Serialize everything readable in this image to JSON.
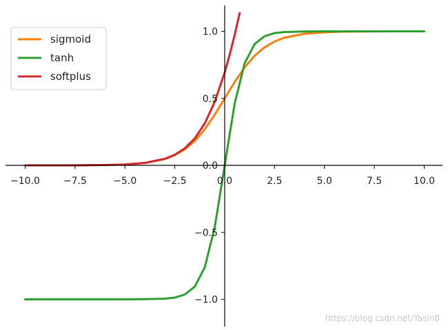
{
  "chart_data": {
    "type": "line",
    "title": "",
    "xlabel": "",
    "ylabel": "",
    "xlim": [
      -10.5,
      10.5
    ],
    "ylim": [
      -1.2,
      1.2
    ],
    "grid": false,
    "spines": "centered",
    "legend_position": "top-left",
    "xticks": [
      "−10.0",
      "−7.5",
      "−5.0",
      "−2.5",
      "0.0",
      "2.5",
      "5.0",
      "7.5",
      "10.0"
    ],
    "xtick_values": [
      -10,
      -7.5,
      -5,
      -2.5,
      0,
      2.5,
      5,
      7.5,
      10
    ],
    "yticks": [
      "−1.0",
      "−0.5",
      "0.0",
      "0.5",
      "1.0"
    ],
    "ytick_values": [
      -1,
      -0.5,
      0,
      0.5,
      1
    ],
    "series": [
      {
        "name": "sigmoid",
        "color": "#ff7f0e",
        "x": [
          -10,
          -9,
          -8,
          -7,
          -6,
          -5,
          -4,
          -3,
          -2.5,
          -2,
          -1.5,
          -1,
          -0.5,
          0,
          0.5,
          1,
          1.5,
          2,
          2.5,
          3,
          4,
          5,
          6,
          7,
          8,
          9,
          10
        ],
        "y": [
          0.0,
          0.0001,
          0.0003,
          0.0009,
          0.0025,
          0.0067,
          0.018,
          0.047,
          0.076,
          0.119,
          0.182,
          0.269,
          0.378,
          0.5,
          0.622,
          0.731,
          0.818,
          0.881,
          0.924,
          0.953,
          0.982,
          0.993,
          0.998,
          0.999,
          1.0,
          1.0,
          1.0
        ]
      },
      {
        "name": "tanh",
        "color": "#2ca02c",
        "x": [
          -10,
          -9,
          -8,
          -7,
          -6,
          -5,
          -4,
          -3,
          -2.5,
          -2,
          -1.5,
          -1,
          -0.5,
          0,
          0.5,
          1,
          1.5,
          2,
          2.5,
          3,
          4,
          5,
          6,
          7,
          8,
          9,
          10
        ],
        "y": [
          -1.0,
          -1.0,
          -1.0,
          -1.0,
          -1.0,
          -1.0,
          -0.999,
          -0.995,
          -0.987,
          -0.964,
          -0.905,
          -0.762,
          -0.462,
          0.0,
          0.462,
          0.762,
          0.905,
          0.964,
          0.987,
          0.995,
          0.999,
          1.0,
          1.0,
          1.0,
          1.0,
          1.0,
          1.0
        ]
      },
      {
        "name": "softplus",
        "color": "#d62728",
        "x": [
          -10,
          -9,
          -8,
          -7,
          -6,
          -5,
          -4,
          -3,
          -2.5,
          -2,
          -1.5,
          -1,
          -0.5,
          0,
          0.25,
          0.5,
          0.75
        ],
        "y": [
          0.0,
          0.0001,
          0.0003,
          0.0009,
          0.0025,
          0.0067,
          0.018,
          0.049,
          0.079,
          0.127,
          0.201,
          0.313,
          0.474,
          0.693,
          0.826,
          0.974,
          1.136
        ]
      }
    ]
  },
  "watermark": "https://blog.csdn.net/Yasin0"
}
